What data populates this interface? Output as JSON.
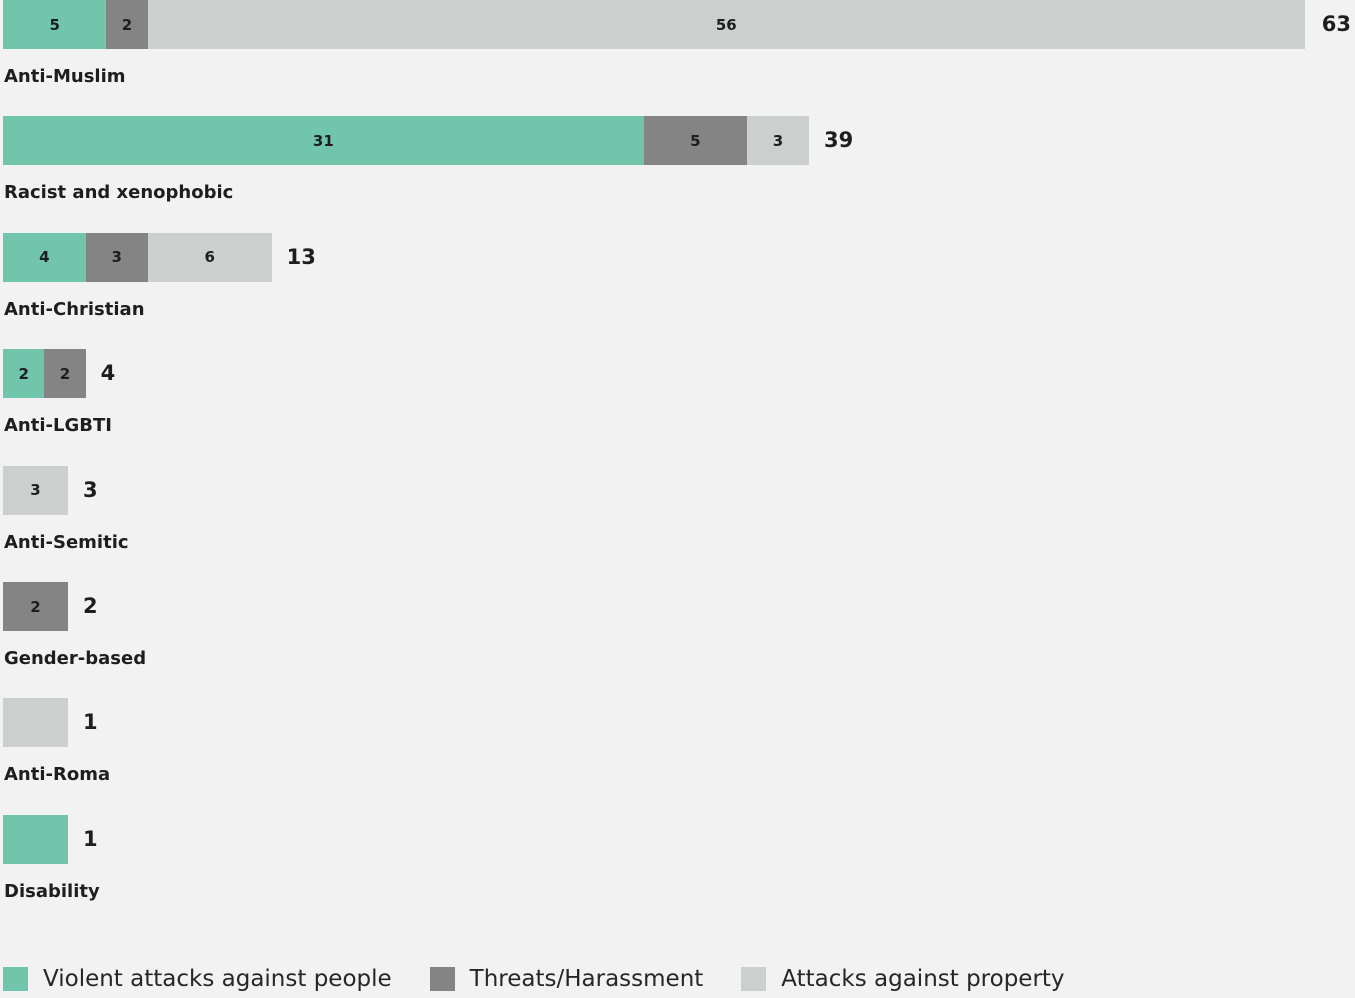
{
  "chart_data": {
    "type": "bar",
    "orientation": "horizontal",
    "stacked": true,
    "title": "",
    "xlabel": "",
    "ylabel": "",
    "categories": [
      "Anti-Muslim",
      "Racist and xenophobic",
      "Anti-Christian",
      "Anti-LGBTI",
      "Anti-Semitic",
      "Gender-based",
      "Anti-Roma",
      "Disability"
    ],
    "series": [
      {
        "name": "Violent attacks against people",
        "color": "#70c5ab",
        "values": [
          5,
          31,
          4,
          2,
          0,
          0,
          0,
          1
        ]
      },
      {
        "name": "Threats/Harassment",
        "color": "#848484",
        "values": [
          2,
          5,
          3,
          2,
          0,
          2,
          0,
          0
        ]
      },
      {
        "name": "Attacks against property",
        "color": "#cbcfcd",
        "values": [
          56,
          3,
          6,
          0,
          3,
          0,
          1,
          0
        ]
      }
    ],
    "segment_labels_shown": [
      [
        true,
        true,
        true
      ],
      [
        true,
        true,
        true
      ],
      [
        true,
        true,
        true
      ],
      [
        true,
        true,
        false
      ],
      [
        false,
        false,
        true
      ],
      [
        false,
        true,
        false
      ],
      [
        false,
        false,
        false
      ],
      [
        false,
        false,
        false
      ]
    ],
    "totals": [
      63,
      39,
      13,
      4,
      3,
      2,
      1,
      1
    ],
    "legend_position": "bottom",
    "grid": false
  }
}
